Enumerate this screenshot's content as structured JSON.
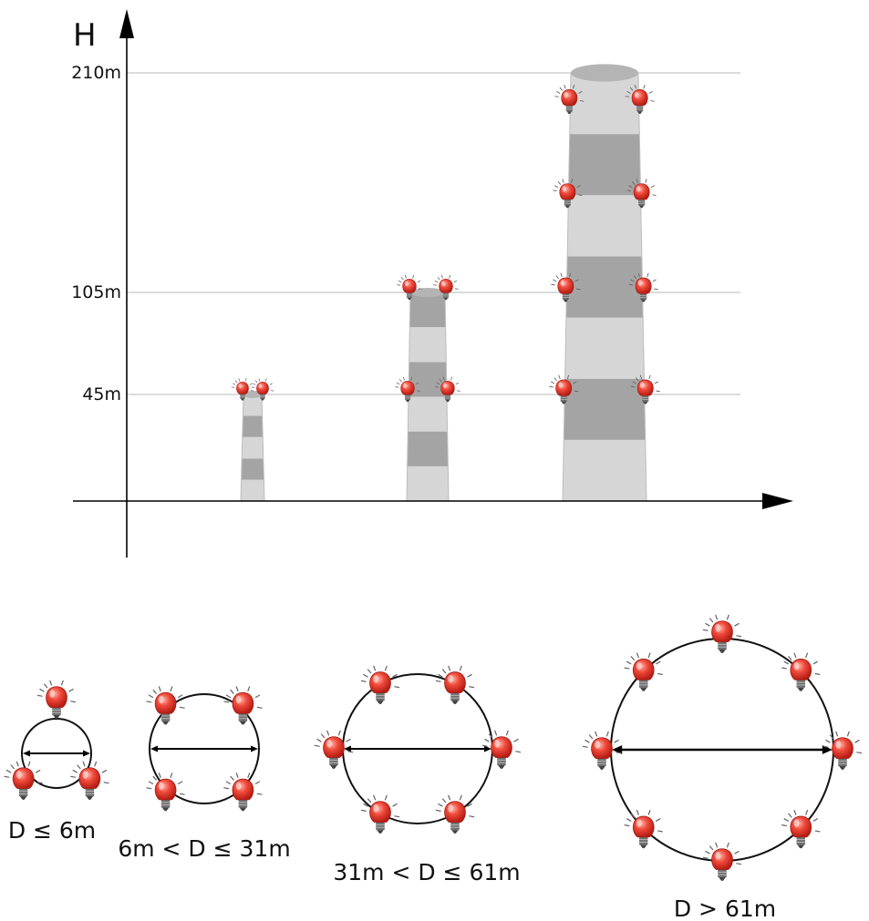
{
  "axis": {
    "y_label": "H"
  },
  "height_levels": [
    {
      "label": "210m",
      "value": 210
    },
    {
      "label": "105m",
      "value": 105
    },
    {
      "label": "45m",
      "value": 45
    }
  ],
  "chimneys": [
    {
      "height_m": 45,
      "light_levels_m": [
        45
      ]
    },
    {
      "height_m": 105,
      "light_levels_m": [
        45,
        105
      ]
    },
    {
      "height_m": 210,
      "light_levels_m": [
        45,
        105,
        150,
        195
      ]
    }
  ],
  "diameter_cases": [
    {
      "label": "D ≤ 6m",
      "lights": 3
    },
    {
      "label": "6m < D ≤ 31m",
      "lights": 4
    },
    {
      "label": "31m < D ≤ 61m",
      "lights": 6
    },
    {
      "label": "D > 61m",
      "lights": 8
    }
  ],
  "colors": {
    "bulb": "#e8382c",
    "band_light": "#d6d6d6",
    "band_dark": "#a4a4a4",
    "grid": "#c8c8c8",
    "axis": "#000000"
  }
}
